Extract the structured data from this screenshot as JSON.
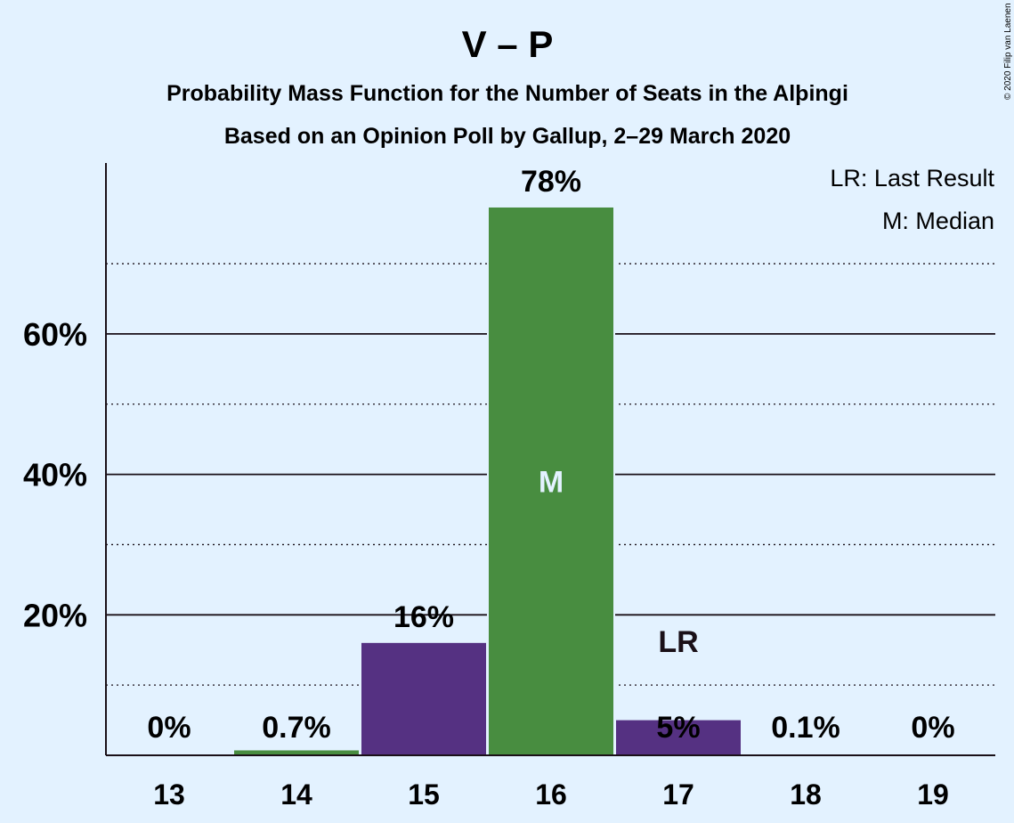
{
  "chart_data": {
    "type": "bar",
    "title": "V – P",
    "subtitle_lines": [
      "Probability Mass Function for the Number of Seats in the Alþingi",
      "Based on an Opinion Poll by Gallup, 2–29 March 2020"
    ],
    "categories": [
      "13",
      "14",
      "15",
      "16",
      "17",
      "18",
      "19"
    ],
    "values": [
      0,
      0.7,
      16,
      78,
      5,
      0.1,
      0
    ],
    "value_labels": [
      "0%",
      "0.7%",
      "16%",
      "78%",
      "5%",
      "0.1%",
      "0%"
    ],
    "bar_colors": [
      "#553182",
      "#488d40",
      "#553182",
      "#488d40",
      "#553182",
      "#553182",
      "#553182"
    ],
    "ylim": [
      0,
      85
    ],
    "yticks_major": [
      20,
      40,
      60
    ],
    "ytick_labels": [
      "20%",
      "40%",
      "60%"
    ],
    "yticks_minor": [
      10,
      30,
      50,
      70
    ],
    "grid": true,
    "markers": [
      {
        "category": "16",
        "label": "M",
        "placement": "inside-bar"
      },
      {
        "category": "17",
        "label": "LR",
        "placement": "above-value"
      }
    ],
    "legend": {
      "placement": "top-right",
      "items": [
        "LR: Last Result",
        "M: Median"
      ]
    }
  },
  "copyright": "© 2020 Filip van Laenen",
  "colors": {
    "background": "#e3f2ff",
    "purple": "#553182",
    "green": "#488d40",
    "text": "#1a1018"
  }
}
